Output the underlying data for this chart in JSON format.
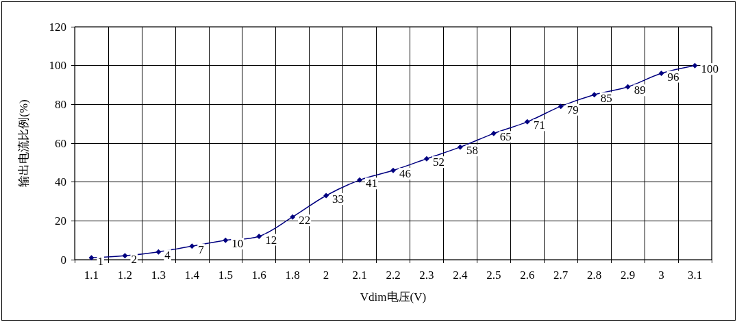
{
  "chart_data": {
    "type": "line",
    "xlabel": "Vdim电压(V)",
    "ylabel": "输出电流比例(%)",
    "categories": [
      "1.1",
      "1.2",
      "1.3",
      "1.4",
      "1.5",
      "1.6",
      "1.8",
      "2",
      "2.1",
      "2.2",
      "2.3",
      "2.4",
      "2.5",
      "2.6",
      "2.7",
      "2.8",
      "2.9",
      "3",
      "3.1"
    ],
    "series": [
      {
        "color": "#000080",
        "values": [
          1,
          2,
          4,
          7,
          10,
          12,
          22,
          33,
          41,
          46,
          52,
          58,
          65,
          71,
          79,
          85,
          89,
          96,
          100
        ]
      }
    ],
    "ylim": [
      0,
      120
    ],
    "yticks": [
      0,
      20,
      40,
      60,
      80,
      100,
      120
    ],
    "grid": true,
    "marker": "diamond",
    "line_style": "solid",
    "data_labels": true
  }
}
